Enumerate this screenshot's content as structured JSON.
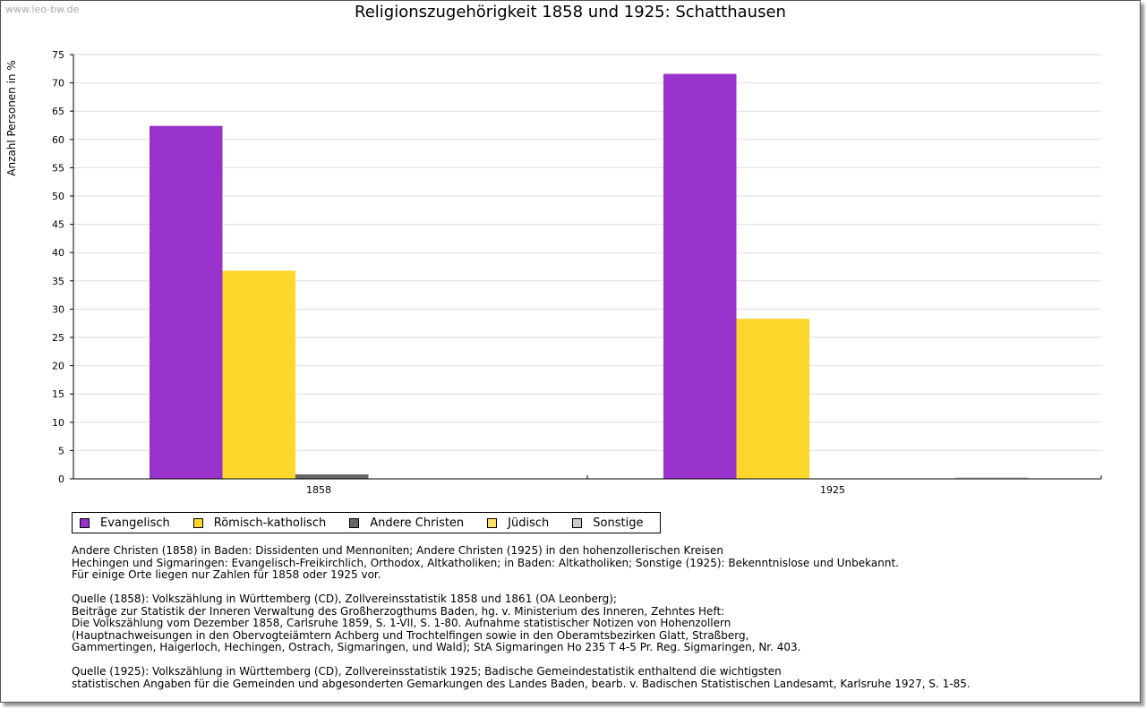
{
  "watermark": "www.leo-bw.de",
  "chart_data": {
    "type": "bar",
    "title": "Religionszugehörigkeit 1858 und 1925: Schatthausen",
    "xlabel": "",
    "ylabel": "Anzahl Personen in %",
    "ylim": [
      0,
      75
    ],
    "yticks": [
      0,
      5,
      10,
      15,
      20,
      25,
      30,
      35,
      40,
      45,
      50,
      55,
      60,
      65,
      70,
      75
    ],
    "categories": [
      "1858",
      "1925"
    ],
    "grid": true,
    "legend_position": "bottom",
    "series": [
      {
        "name": "Evangelisch",
        "color": "#9932CC",
        "values": [
          62.4,
          71.6
        ]
      },
      {
        "name": "Römisch-katholisch",
        "color": "#FDD72B",
        "values": [
          36.8,
          28.3
        ]
      },
      {
        "name": "Andere Christen",
        "color": "#666666",
        "values": [
          0.8,
          0
        ]
      },
      {
        "name": "Jüdisch",
        "color": "#FFE066",
        "values": [
          0,
          0
        ]
      },
      {
        "name": "Sonstige",
        "color": "#CCCCCC",
        "values": [
          0,
          0.3
        ]
      }
    ]
  },
  "notes": [
    "Andere Christen (1858) in Baden: Dissidenten und Mennoniten; Andere Christen (1925) in den hohenzollerischen Kreisen\nHechingen und Sigmaringen: Evangelisch-Freikirchlich, Orthodox, Altkatholiken; in Baden: Altkatholiken; Sonstige (1925): Bekenntnislose und Unbekannt.\nFür einige Orte liegen nur Zahlen für 1858 oder 1925 vor.",
    "Quelle (1858): Volkszählung in Württemberg (CD), Zollvereinsstatistik 1858 und 1861 (OA Leonberg);\nBeiträge zur Statistik der Inneren Verwaltung des Großherzogthums Baden, hg. v. Ministerium des Inneren, Zehntes Heft:\nDie Volkszählung vom Dezember 1858, Carlsruhe 1859, S. 1-VII, S. 1-80. Aufnahme statistischer Notizen von Hohenzollern\n(Hauptnachweisungen in den Obervogteiämtern Achberg und Trochtelfingen sowie in den Oberamtsbezirken Glatt, Straßberg,\nGammertingen, Haigerloch, Hechingen, Ostrach, Sigmaringen, und Wald); StA Sigmaringen Ho 235 T 4-5 Pr. Reg. Sigmaringen, Nr. 403.",
    "Quelle (1925): Volkszählung in Württemberg (CD), Zollvereinsstatistik 1925; Badische Gemeindestatistik enthaltend die wichtigsten\nstatistischen Angaben für die Gemeinden und abgesonderten Gemarkungen des Landes Baden, bearb. v. Badischen Statistischen Landesamt, Karlsruhe 1927, S. 1-85."
  ]
}
